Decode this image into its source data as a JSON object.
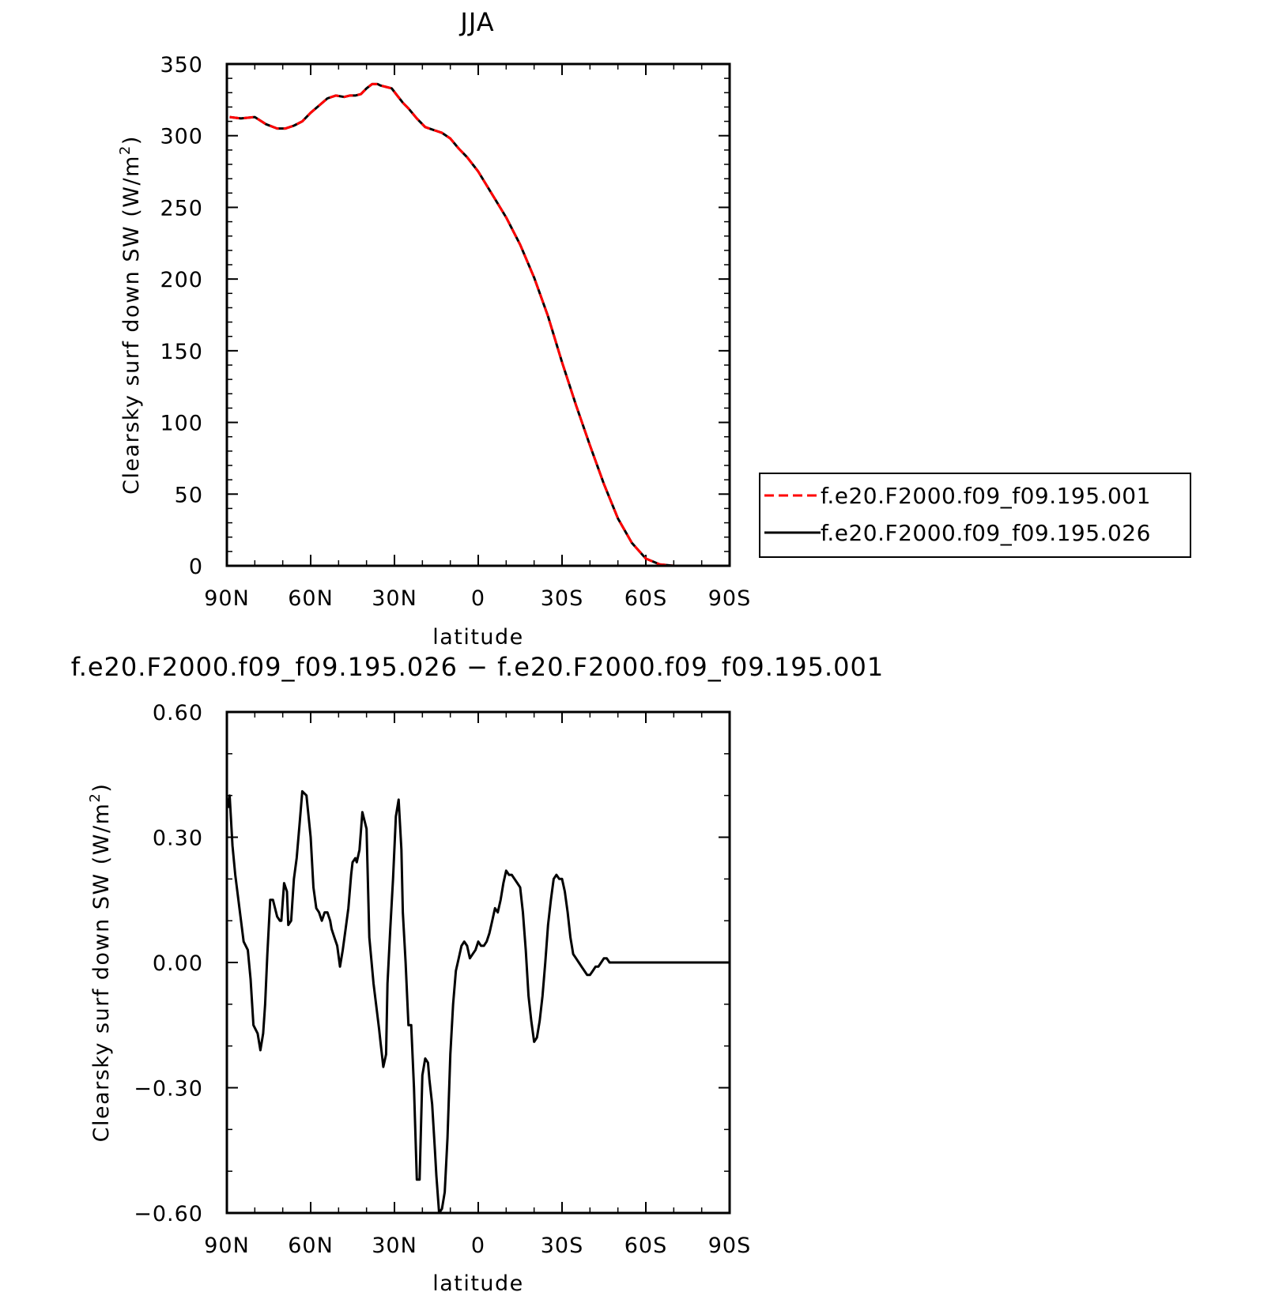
{
  "chart_data": [
    {
      "type": "line",
      "title": "JJA",
      "xlabel": "latitude",
      "ylabel": "Clearsky surf down SW (W/m²)",
      "ylabel_parts": {
        "main": "Clearsky surf down SW (W/m",
        "sup": "2",
        "end": ")"
      },
      "xlim": [
        90,
        -90
      ],
      "ylim": [
        0,
        350
      ],
      "x_ticks": [
        90,
        60,
        30,
        0,
        -30,
        -60,
        -90
      ],
      "x_tick_labels": [
        "90N",
        "60N",
        "30N",
        "0",
        "30S",
        "60S",
        "90S"
      ],
      "y_ticks": [
        0,
        50,
        100,
        150,
        200,
        250,
        300,
        350
      ],
      "y_tick_labels": [
        "0",
        "50",
        "100",
        "150",
        "200",
        "250",
        "300",
        "350"
      ],
      "legend": {
        "position": "right"
      },
      "series": [
        {
          "name": "f.e20.F2000.f09_f09.195.001",
          "color": "#ff0000",
          "dash": "dashed",
          "x": [
            89,
            85,
            80,
            76,
            72,
            69,
            66,
            63,
            60,
            57,
            54,
            51,
            48,
            46,
            44,
            42,
            40,
            38,
            36,
            35,
            33,
            31,
            29,
            27,
            25,
            22,
            19,
            16,
            13,
            10,
            7,
            4,
            0,
            -5,
            -10,
            -15,
            -20,
            -25,
            -30,
            -35,
            -40,
            -45,
            -50,
            -55,
            -60,
            -65,
            -70,
            -75,
            -78,
            -80,
            -85,
            -89
          ],
          "y": [
            313,
            312,
            313,
            308,
            305,
            305,
            307,
            310,
            316,
            321,
            326,
            328,
            327,
            328,
            328,
            329,
            333,
            336,
            336,
            335,
            334,
            333,
            328,
            323,
            319,
            312,
            306,
            304,
            302,
            298,
            291,
            285,
            275,
            259,
            243,
            224,
            201,
            174,
            142,
            112,
            84,
            57,
            33,
            16,
            5,
            1,
            0,
            0,
            0,
            0,
            0,
            0
          ]
        },
        {
          "name": "f.e20.F2000.f09_f09.195.026",
          "color": "#000000",
          "dash": "solid",
          "x": [
            89,
            85,
            80,
            76,
            72,
            69,
            66,
            63,
            60,
            57,
            54,
            51,
            48,
            46,
            44,
            42,
            40,
            38,
            36,
            35,
            33,
            31,
            29,
            27,
            25,
            22,
            19,
            16,
            13,
            10,
            7,
            4,
            0,
            -5,
            -10,
            -15,
            -20,
            -25,
            -30,
            -35,
            -40,
            -45,
            -50,
            -55,
            -60,
            -65,
            -70,
            -75,
            -78,
            -80,
            -85,
            -89
          ],
          "y": [
            313,
            312,
            313,
            308,
            305,
            305,
            307,
            310,
            316,
            321,
            326,
            328,
            327,
            328,
            328,
            329,
            333,
            336,
            336,
            335,
            334,
            333,
            328,
            323,
            319,
            312,
            306,
            304,
            302,
            298,
            291,
            285,
            275,
            259,
            243,
            224,
            201,
            174,
            142,
            112,
            84,
            57,
            33,
            16,
            5,
            1,
            0,
            0,
            0,
            0,
            0,
            0
          ]
        }
      ]
    },
    {
      "type": "line",
      "title": "f.e20.F2000.f09_f09.195.026 − f.e20.F2000.f09_f09.195.001",
      "xlabel": "latitude",
      "ylabel": "Clearsky surf down SW (W/m²)",
      "ylabel_parts": {
        "main": "Clearsky surf down SW (W/m",
        "sup": "2",
        "end": ")"
      },
      "xlim": [
        90,
        -90
      ],
      "ylim": [
        -0.6,
        0.6
      ],
      "x_ticks": [
        90,
        60,
        30,
        0,
        -30,
        -60,
        -90
      ],
      "x_tick_labels": [
        "90N",
        "60N",
        "30N",
        "0",
        "30S",
        "60S",
        "90S"
      ],
      "y_ticks": [
        0.6,
        0.3,
        0.0,
        -0.3,
        -0.6
      ],
      "y_tick_labels": [
        "0.60",
        "0.30",
        "0.00",
        "−0.30",
        "−0.60"
      ],
      "series": [
        {
          "color": "#000000",
          "dash": "solid",
          "x": [
            89.5,
            89,
            88,
            87,
            85.5,
            84,
            82.5,
            81.5,
            80.5,
            79,
            78,
            77,
            76.3,
            75.5,
            74.5,
            73.5,
            72,
            71,
            70.5,
            69.5,
            68.5,
            68,
            67,
            66,
            65,
            64,
            63,
            61.5,
            60,
            59,
            58,
            57,
            56,
            55,
            54,
            53,
            52.5,
            51.5,
            50.5,
            49.5,
            48.5,
            47.5,
            46.5,
            45.5,
            45,
            44,
            43.5,
            42.5,
            41.5,
            40,
            39,
            37.5,
            35.5,
            35,
            34,
            33,
            32.5,
            31.5,
            30.5,
            29.5,
            28.5,
            27.5,
            27,
            26,
            25,
            24,
            23,
            22,
            21,
            20,
            19,
            18,
            17.5,
            16.5,
            15.5,
            15,
            14,
            13,
            12,
            11,
            10,
            9,
            8,
            7,
            6,
            5,
            4,
            3,
            2,
            1,
            0,
            -1,
            -2,
            -3,
            -4,
            -5,
            -6,
            -7,
            -8,
            -9,
            -10,
            -11,
            -12,
            -13,
            -14,
            -15,
            -16,
            -17,
            -18,
            -19,
            -20,
            -21,
            -22,
            -23,
            -24,
            -25,
            -26,
            -27,
            -28,
            -29,
            -30,
            -31,
            -32,
            -33,
            -34,
            -35,
            -36,
            -37,
            -38,
            -39,
            -40,
            -41,
            -42,
            -43,
            -44,
            -45,
            -46,
            -47,
            -48,
            -49,
            -50,
            -51,
            -52,
            -53,
            -54,
            -55,
            -56,
            -57,
            -58,
            -59,
            -60,
            -61,
            -62,
            -63,
            -64,
            -65,
            -66,
            -67,
            -68,
            -69,
            -70,
            -72,
            -74,
            -76,
            -78,
            -80,
            -85,
            -90
          ],
          "y": [
            0.37,
            0.4,
            0.28,
            0.21,
            0.13,
            0.05,
            0.03,
            -0.04,
            -0.15,
            -0.17,
            -0.21,
            -0.17,
            -0.1,
            0.02,
            0.15,
            0.15,
            0.11,
            0.1,
            0.1,
            0.19,
            0.17,
            0.09,
            0.1,
            0.2,
            0.25,
            0.33,
            0.41,
            0.4,
            0.3,
            0.18,
            0.13,
            0.12,
            0.1,
            0.12,
            0.12,
            0.1,
            0.08,
            0.06,
            0.04,
            -0.01,
            0.03,
            0.08,
            0.13,
            0.21,
            0.24,
            0.25,
            0.24,
            0.27,
            0.36,
            0.32,
            0.06,
            -0.05,
            -0.16,
            -0.19,
            -0.25,
            -0.22,
            -0.05,
            0.08,
            0.2,
            0.35,
            0.39,
            0.27,
            0.12,
            0.0,
            -0.15,
            -0.15,
            -0.3,
            -0.52,
            -0.52,
            -0.27,
            -0.23,
            -0.24,
            -0.28,
            -0.34,
            -0.45,
            -0.51,
            -0.6,
            -0.59,
            -0.55,
            -0.42,
            -0.22,
            -0.1,
            -0.02,
            0.01,
            0.04,
            0.05,
            0.04,
            0.01,
            0.02,
            0.03,
            0.05,
            0.04,
            0.04,
            0.05,
            0.07,
            0.1,
            0.13,
            0.12,
            0.15,
            0.19,
            0.22,
            0.21,
            0.21,
            0.2,
            0.19,
            0.18,
            0.12,
            0.03,
            -0.08,
            -0.14,
            -0.19,
            -0.18,
            -0.14,
            -0.08,
            0.0,
            0.09,
            0.15,
            0.2,
            0.21,
            0.2,
            0.2,
            0.17,
            0.12,
            0.06,
            0.02,
            0.01,
            -0.0,
            -0.01,
            -0.02,
            -0.03,
            -0.03,
            -0.02,
            -0.01,
            -0.01,
            0.0,
            0.01,
            0.01,
            0.0,
            0.0,
            0.0,
            0.0,
            0.0,
            0.0,
            0.0,
            0.0,
            0.0,
            0.0,
            0.0,
            0.0,
            0.0,
            0.0,
            0.0,
            0.0,
            0.0,
            0.0,
            0.0,
            0.0,
            0.0,
            0.0,
            0.0,
            0.0,
            0.0,
            0.0,
            0.0,
            0.0,
            0.0,
            0.0,
            0.0
          ]
        }
      ]
    }
  ]
}
